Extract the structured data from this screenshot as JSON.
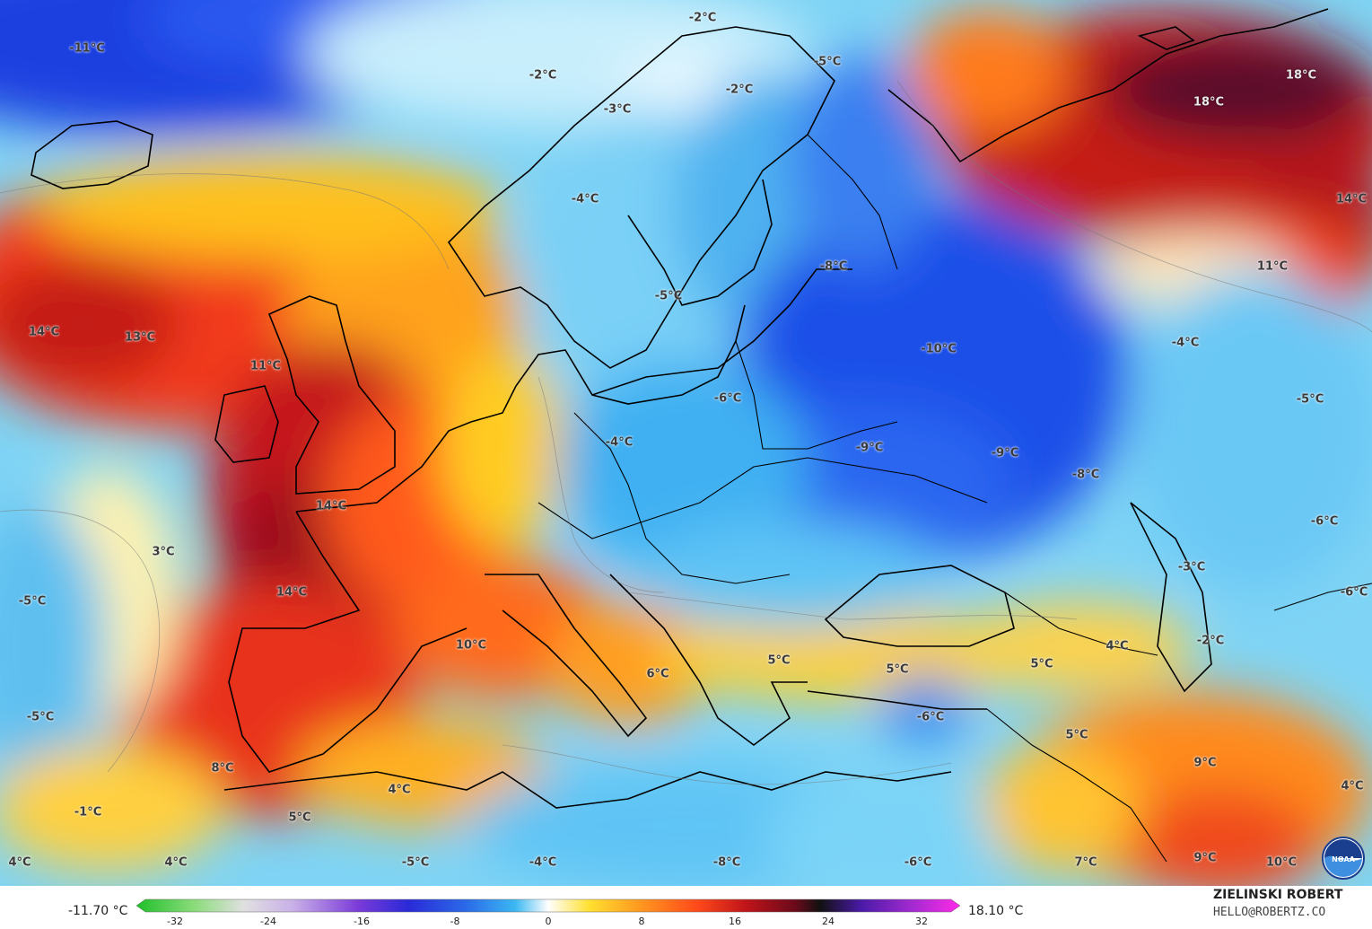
{
  "map": {
    "labels": [
      {
        "text": "-11°C",
        "lon_hint": "north-atlantic-west"
      },
      {
        "text": "-2°C"
      },
      {
        "text": "-2°C"
      },
      {
        "text": "-2°C"
      },
      {
        "text": "-3°C"
      },
      {
        "text": "-5°C"
      },
      {
        "text": "18°C"
      },
      {
        "text": "18°C"
      },
      {
        "text": "14°C"
      },
      {
        "text": "-4°C"
      },
      {
        "text": "-8°C"
      },
      {
        "text": "-5°C"
      },
      {
        "text": "11°C"
      },
      {
        "text": "14°C"
      },
      {
        "text": "13°C"
      },
      {
        "text": "11°C"
      },
      {
        "text": "-10°C"
      },
      {
        "text": "-4°C"
      },
      {
        "text": "-6°C"
      },
      {
        "text": "-5°C"
      },
      {
        "text": "-4°C"
      },
      {
        "text": "-9°C"
      },
      {
        "text": "-9°C"
      },
      {
        "text": "-8°C"
      },
      {
        "text": "14°C"
      },
      {
        "text": "3°C"
      },
      {
        "text": "-6°C"
      },
      {
        "text": "-5°C"
      },
      {
        "text": "14°C"
      },
      {
        "text": "-3°C"
      },
      {
        "text": "-6°C"
      },
      {
        "text": "10°C"
      },
      {
        "text": "4°C"
      },
      {
        "text": "-2°C"
      },
      {
        "text": "6°C"
      },
      {
        "text": "5°C"
      },
      {
        "text": "5°C"
      },
      {
        "text": "5°C"
      },
      {
        "text": "-5°C"
      },
      {
        "text": "-6°C"
      },
      {
        "text": "5°C"
      },
      {
        "text": "9°C"
      },
      {
        "text": "8°C"
      },
      {
        "text": "4°C"
      },
      {
        "text": "4°C"
      },
      {
        "text": "-1°C"
      },
      {
        "text": "5°C"
      },
      {
        "text": "4°C"
      },
      {
        "text": "4°C"
      },
      {
        "text": "-5°C"
      },
      {
        "text": "-4°C"
      },
      {
        "text": "-8°C"
      },
      {
        "text": "-6°C"
      },
      {
        "text": "7°C"
      },
      {
        "text": "9°C"
      },
      {
        "text": "10°C"
      }
    ]
  },
  "legend": {
    "min": "-11.70 °C",
    "max": "18.10 °C",
    "ticks": [
      "-32",
      "-24",
      "-16",
      "-8",
      "0",
      "8",
      "16",
      "24",
      "32"
    ]
  },
  "credit": {
    "name": "ZIELINSKI ROBERT",
    "email": "HELLO@ROBERTZ.CO"
  },
  "logo": {
    "icon": "noaa-logo-icon",
    "text": "NOAA"
  }
}
